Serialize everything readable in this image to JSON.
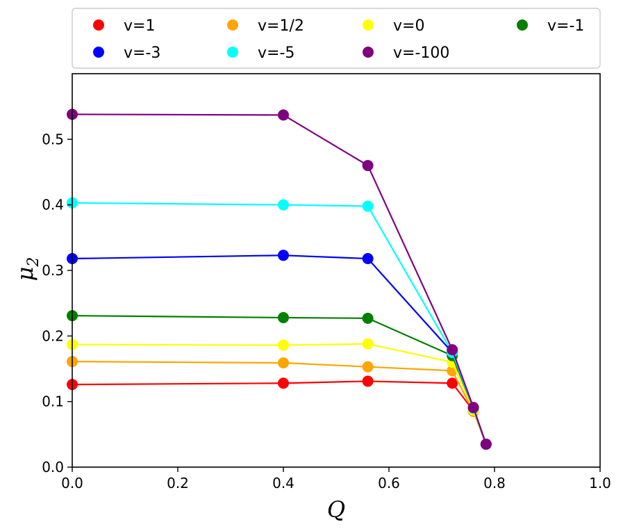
{
  "chart_data": {
    "type": "line",
    "title": "",
    "xlabel": "Q",
    "ylabel": "μ",
    "ylabel_subscript": "2",
    "xlim": [
      0.0,
      1.0
    ],
    "ylim": [
      0.0,
      0.6
    ],
    "xticks": [
      "0.0",
      "0.2",
      "0.4",
      "0.6",
      "0.8",
      "1.0"
    ],
    "yticks": [
      "0.0",
      "0.1",
      "0.2",
      "0.3",
      "0.4",
      "0.5"
    ],
    "grid": false,
    "legend_position": "top",
    "x": [
      0.0,
      0.4,
      0.56,
      0.72,
      0.76,
      0.784
    ],
    "series": [
      {
        "name": "v=1",
        "color": "#ff0000",
        "values": [
          0.126,
          0.128,
          0.131,
          0.128,
          0.086,
          0.035
        ]
      },
      {
        "name": "v=1/2",
        "color": "#ffa500",
        "values": [
          0.161,
          0.159,
          0.153,
          0.147,
          0.085,
          0.035
        ]
      },
      {
        "name": "v=0",
        "color": "#ffff00",
        "values": [
          0.187,
          0.186,
          0.188,
          0.16,
          0.087,
          0.035
        ]
      },
      {
        "name": "v=-1",
        "color": "#008000",
        "values": [
          0.231,
          0.228,
          0.227,
          0.17,
          0.09,
          0.035
        ]
      },
      {
        "name": "v=-3",
        "color": "#0000ff",
        "values": [
          0.318,
          0.323,
          0.318,
          0.175,
          0.09,
          0.035
        ]
      },
      {
        "name": "v=-5",
        "color": "#00ffff",
        "values": [
          0.403,
          0.4,
          0.398,
          0.175,
          0.09,
          0.035
        ]
      },
      {
        "name": "v=-100",
        "color": "#800080",
        "values": [
          0.538,
          0.537,
          0.46,
          0.179,
          0.091,
          0.035
        ]
      }
    ],
    "legend_order": [
      "v=1",
      "v=1/2",
      "v=0",
      "v=-1",
      "v=-3",
      "v=-5",
      "v=-100"
    ]
  }
}
